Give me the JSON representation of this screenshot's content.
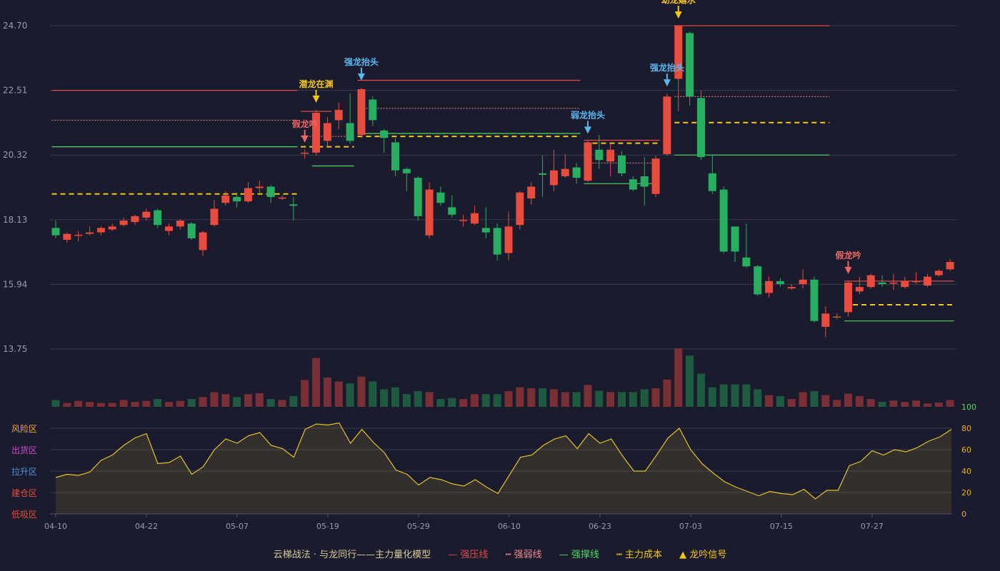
{
  "colors": {
    "background": "#1b1b2e",
    "grid": "#3a3a4c",
    "up": "#e94b3c",
    "down": "#27ae60",
    "vol_up": "#7a2f35",
    "vol_down": "#1e5a40",
    "strong_pressure": "#e24a4a",
    "weak_line": "#f08a8a",
    "support": "#4cd964",
    "cost": "#f5c518",
    "oscillator": "#e6c229",
    "axis_text": "#9a9ab0"
  },
  "chart_data": {
    "type": "candlestick",
    "y_axis": {
      "ticks": [
        "24.70",
        "22.51",
        "20.32",
        "18.13",
        "15.94",
        "13.75"
      ],
      "min": 13.75,
      "max": 24.7
    },
    "x_axis": {
      "ticks": [
        "04-10",
        "04-22",
        "05-07",
        "05-19",
        "05-29",
        "06-10",
        "06-23",
        "07-03",
        "07-15",
        "07-27"
      ],
      "tick_index": [
        0,
        8,
        16,
        24,
        32,
        40,
        48,
        56,
        64,
        72
      ]
    },
    "candles": [
      [
        17.85,
        17.6,
        18.1,
        17.5
      ],
      [
        17.45,
        17.65,
        17.7,
        17.35
      ],
      [
        17.6,
        17.62,
        17.75,
        17.4
      ],
      [
        17.65,
        17.7,
        17.9,
        17.6
      ],
      [
        17.7,
        17.85,
        17.9,
        17.6
      ],
      [
        17.8,
        17.9,
        18.0,
        17.75
      ],
      [
        17.95,
        18.1,
        18.2,
        17.9
      ],
      [
        18.05,
        18.25,
        18.3,
        17.95
      ],
      [
        18.2,
        18.4,
        18.5,
        18.1
      ],
      [
        18.45,
        17.95,
        18.5,
        17.85
      ],
      [
        17.75,
        17.9,
        18.0,
        17.6
      ],
      [
        17.9,
        18.1,
        18.15,
        17.8
      ],
      [
        18.0,
        17.5,
        18.05,
        17.45
      ],
      [
        17.1,
        17.7,
        17.75,
        16.9
      ],
      [
        17.95,
        18.5,
        18.8,
        17.9
      ],
      [
        18.7,
        18.95,
        19.1,
        18.6
      ],
      [
        18.9,
        18.75,
        19.05,
        18.55
      ],
      [
        18.75,
        19.2,
        19.4,
        18.7
      ],
      [
        19.2,
        19.25,
        19.45,
        19.0
      ],
      [
        19.25,
        18.9,
        19.3,
        18.7
      ],
      [
        18.85,
        18.88,
        18.95,
        18.8
      ],
      [
        18.65,
        18.6,
        18.9,
        18.1
      ],
      [
        20.38,
        20.4,
        20.5,
        20.2
      ],
      [
        20.4,
        21.75,
        21.85,
        20.3
      ],
      [
        20.8,
        21.4,
        21.6,
        20.6
      ],
      [
        21.5,
        21.85,
        22.1,
        21.2
      ],
      [
        21.4,
        20.8,
        22.4,
        20.7
      ],
      [
        21.0,
        22.55,
        22.6,
        20.9
      ],
      [
        22.2,
        21.5,
        22.3,
        21.3
      ],
      [
        21.15,
        20.9,
        21.2,
        20.4
      ],
      [
        20.75,
        19.8,
        20.9,
        19.6
      ],
      [
        19.85,
        19.7,
        19.9,
        19.1
      ],
      [
        19.55,
        18.25,
        19.6,
        18.1
      ],
      [
        17.6,
        19.15,
        19.4,
        17.5
      ],
      [
        19.05,
        18.7,
        19.25,
        18.6
      ],
      [
        18.55,
        18.3,
        18.95,
        18.2
      ],
      [
        18.1,
        18.12,
        18.3,
        17.9
      ],
      [
        18.0,
        18.35,
        18.6,
        17.95
      ],
      [
        17.85,
        17.7,
        18.55,
        17.5
      ],
      [
        17.85,
        16.95,
        18.0,
        16.75
      ],
      [
        17.0,
        17.9,
        18.4,
        16.75
      ],
      [
        17.95,
        19.05,
        19.1,
        17.8
      ],
      [
        18.85,
        19.25,
        19.4,
        18.65
      ],
      [
        19.7,
        19.65,
        20.3,
        18.9
      ],
      [
        19.3,
        19.8,
        20.5,
        19.1
      ],
      [
        19.6,
        19.85,
        20.35,
        19.55
      ],
      [
        19.9,
        19.55,
        20.05,
        19.35
      ],
      [
        19.45,
        20.75,
        20.8,
        19.4
      ],
      [
        20.5,
        20.15,
        21.0,
        19.85
      ],
      [
        20.1,
        20.5,
        20.7,
        19.6
      ],
      [
        20.3,
        19.7,
        20.45,
        19.6
      ],
      [
        19.5,
        19.15,
        19.6,
        19.1
      ],
      [
        19.6,
        19.25,
        20.25,
        18.6
      ],
      [
        19.0,
        20.2,
        20.3,
        18.9
      ],
      [
        20.35,
        22.3,
        22.4,
        20.3
      ],
      [
        22.9,
        24.7,
        24.7,
        21.8
      ],
      [
        24.45,
        22.3,
        24.5,
        22.0
      ],
      [
        22.25,
        20.25,
        22.5,
        20.15
      ],
      [
        19.7,
        19.1,
        20.3,
        19.0
      ],
      [
        19.15,
        17.05,
        19.25,
        17.0
      ],
      [
        17.9,
        17.05,
        17.9,
        16.7
      ],
      [
        16.85,
        16.55,
        18.0,
        16.5
      ],
      [
        16.55,
        15.6,
        16.6,
        15.55
      ],
      [
        15.65,
        16.05,
        16.2,
        15.5
      ],
      [
        16.05,
        15.95,
        16.15,
        15.85
      ],
      [
        15.8,
        15.85,
        15.95,
        15.75
      ],
      [
        15.95,
        16.1,
        16.45,
        15.8
      ],
      [
        16.1,
        14.7,
        16.2,
        14.65
      ],
      [
        14.5,
        14.95,
        15.2,
        14.15
      ],
      [
        14.85,
        14.85,
        14.95,
        14.75
      ],
      [
        15.0,
        16.0,
        16.05,
        14.85
      ],
      [
        15.7,
        15.85,
        16.2,
        15.6
      ],
      [
        15.85,
        16.25,
        16.3,
        15.8
      ],
      [
        16.0,
        15.95,
        16.25,
        15.85
      ],
      [
        16.0,
        16.0,
        16.3,
        15.75
      ],
      [
        15.85,
        16.05,
        16.2,
        15.8
      ],
      [
        16.05,
        16.05,
        16.35,
        15.95
      ],
      [
        15.9,
        16.2,
        16.3,
        15.85
      ],
      [
        16.25,
        16.4,
        16.45,
        16.2
      ],
      [
        16.45,
        16.7,
        16.8,
        16.4
      ]
    ],
    "volume": [
      0.14,
      0.08,
      0.12,
      0.1,
      0.08,
      0.08,
      0.14,
      0.1,
      0.12,
      0.16,
      0.1,
      0.12,
      0.16,
      0.2,
      0.3,
      0.26,
      0.2,
      0.26,
      0.28,
      0.16,
      0.14,
      0.22,
      0.55,
      1.0,
      0.6,
      0.52,
      0.48,
      0.62,
      0.52,
      0.36,
      0.4,
      0.26,
      0.32,
      0.3,
      0.16,
      0.18,
      0.16,
      0.26,
      0.26,
      0.26,
      0.32,
      0.4,
      0.38,
      0.38,
      0.36,
      0.3,
      0.3,
      0.45,
      0.33,
      0.3,
      0.3,
      0.3,
      0.36,
      0.38,
      0.56,
      1.2,
      1.05,
      0.68,
      0.4,
      0.46,
      0.46,
      0.46,
      0.36,
      0.24,
      0.22,
      0.16,
      0.3,
      0.32,
      0.24,
      0.14,
      0.27,
      0.22,
      0.16,
      0.1,
      0.13,
      0.1,
      0.13,
      0.07,
      0.09,
      0.14
    ],
    "oscillator": {
      "values": [
        34,
        37,
        36,
        39,
        50,
        55,
        64,
        71,
        75,
        47,
        48,
        54,
        37,
        44,
        60,
        70,
        66,
        73,
        76,
        64,
        61,
        53,
        79,
        84,
        83,
        85,
        66,
        79,
        67,
        57,
        41,
        37,
        27,
        34,
        32,
        28,
        26,
        32,
        25,
        19,
        36,
        53,
        55,
        64,
        70,
        73,
        61,
        75,
        66,
        70,
        54,
        40,
        40,
        55,
        71,
        80,
        60,
        47,
        38,
        30,
        25,
        21,
        17,
        21,
        19,
        18,
        23,
        14,
        22,
        22,
        45,
        49,
        59,
        55,
        60,
        58,
        62,
        68,
        72,
        79
      ],
      "range": [
        0,
        100
      ],
      "ticks": [
        "100",
        "80",
        "60",
        "40",
        "20",
        "0"
      ],
      "zones": [
        "风险区",
        "出货区",
        "拉升区",
        "建仓区",
        "低吸区"
      ],
      "zone_colors": [
        "#f5a623",
        "#d147d1",
        "#4a90e2",
        "#e94b3c",
        "#e94b3c"
      ],
      "tick_color_top": "#4cd964",
      "tick_color": "#f5a623"
    },
    "levels": [
      {
        "kind": "strong_pressure",
        "start": 0,
        "end": 21,
        "y": 22.51
      },
      {
        "kind": "weak_line",
        "start": 0,
        "end": 21,
        "y": 21.5
      },
      {
        "kind": "support",
        "start": 0,
        "end": 21,
        "y": 20.6
      },
      {
        "kind": "cost",
        "start": 0,
        "end": 21,
        "y": 19.0
      },
      {
        "kind": "strong_pressure",
        "start": 22,
        "end": 24,
        "y": 21.8
      },
      {
        "kind": "weak_line",
        "start": 22,
        "end": 26,
        "y": 20.95
      },
      {
        "kind": "cost",
        "start": 22,
        "end": 26,
        "y": 20.6
      },
      {
        "kind": "support",
        "start": 23,
        "end": 26,
        "y": 19.95
      },
      {
        "kind": "strong_pressure",
        "start": 27,
        "end": 46,
        "y": 22.85
      },
      {
        "kind": "weak_line",
        "start": 27,
        "end": 46,
        "y": 21.9
      },
      {
        "kind": "support",
        "start": 27,
        "end": 46,
        "y": 21.05
      },
      {
        "kind": "cost",
        "start": 27,
        "end": 46,
        "y": 20.95
      },
      {
        "kind": "strong_pressure",
        "start": 47,
        "end": 53,
        "y": 20.82
      },
      {
        "kind": "cost",
        "start": 47,
        "end": 53,
        "y": 20.72
      },
      {
        "kind": "weak_line",
        "start": 47,
        "end": 53,
        "y": 20.05
      },
      {
        "kind": "support",
        "start": 47,
        "end": 53,
        "y": 19.35
      },
      {
        "kind": "strong_pressure",
        "start": 55,
        "end": 68,
        "y": 24.7
      },
      {
        "kind": "weak_line",
        "start": 55,
        "end": 68,
        "y": 22.3
      },
      {
        "kind": "cost",
        "start": 55,
        "end": 68,
        "y": 21.42
      },
      {
        "kind": "support",
        "start": 55,
        "end": 68,
        "y": 20.32
      },
      {
        "kind": "strong_pressure",
        "start": 70,
        "end": 79,
        "y": 16.05
      },
      {
        "kind": "cost",
        "start": 70,
        "end": 79,
        "y": 15.25
      },
      {
        "kind": "support",
        "start": 70,
        "end": 79,
        "y": 14.7
      }
    ],
    "signals": [
      {
        "label": "假龙吟",
        "index": 22,
        "color": "#ee6666"
      },
      {
        "label": "潜龙在渊",
        "index": 23,
        "color": "#f5c518"
      },
      {
        "label": "强龙抬头",
        "index": 27,
        "color": "#5ab8f0"
      },
      {
        "label": "弱龙抬头",
        "index": 47,
        "color": "#5ab8f0"
      },
      {
        "label": "强龙抬头",
        "index": 54,
        "color": "#5ab8f0"
      },
      {
        "label": "幼龙嬉水",
        "index": 55,
        "color": "#f5c518"
      },
      {
        "label": "假龙吟",
        "index": 70,
        "color": "#ee6666"
      }
    ]
  },
  "legend": {
    "title": "云梯战法 · 与龙同行——主力量化模型",
    "items": [
      {
        "label": "强压线",
        "symbol": "—",
        "color": "#e24a4a"
      },
      {
        "label": "强弱线",
        "symbol": "┅",
        "color": "#f08a8a"
      },
      {
        "label": "强撑线",
        "symbol": "—",
        "color": "#4cd964"
      },
      {
        "label": "主力成本",
        "symbol": "┅",
        "color": "#f5c518"
      },
      {
        "label": "龙吟信号",
        "symbol": "▲",
        "color": "#f5c518"
      }
    ]
  }
}
